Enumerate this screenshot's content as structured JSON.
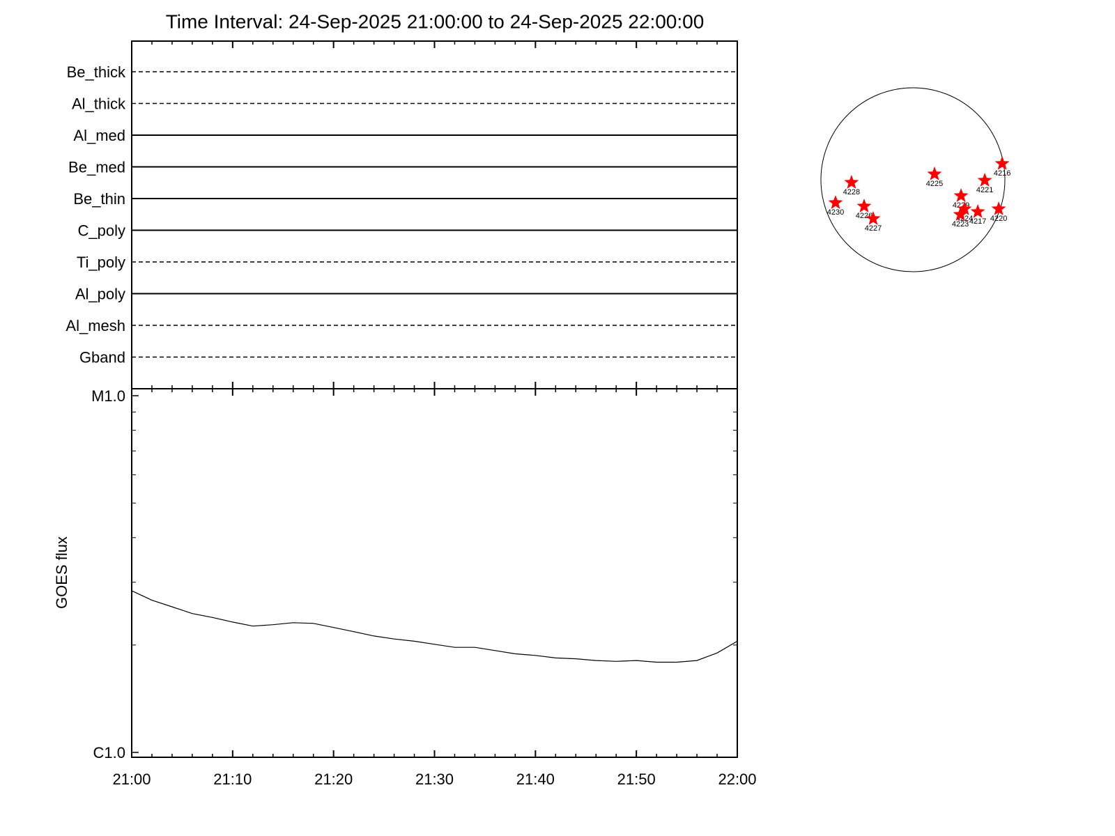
{
  "chart_data": [
    {
      "type": "timeline",
      "title": "Time Interval: 24-Sep-2025 21:00:00 to 24-Sep-2025 22:00:00",
      "categories": [
        "Be_thick",
        "Al_thick",
        "Al_med",
        "Be_med",
        "Be_thin",
        "C_poly",
        "Ti_poly",
        "Al_poly",
        "Al_mesh",
        "Gband"
      ],
      "line_style": [
        "dashed",
        "dashed",
        "solid",
        "solid",
        "solid",
        "solid",
        "dashed",
        "solid",
        "dashed",
        "dashed"
      ],
      "color": "#000000"
    },
    {
      "type": "line",
      "ylabel": "GOES flux",
      "x": [
        "21:00",
        "21:02",
        "21:04",
        "21:06",
        "21:08",
        "21:10",
        "21:12",
        "21:14",
        "21:16",
        "21:18",
        "21:20",
        "21:22",
        "21:24",
        "21:26",
        "21:28",
        "21:30",
        "21:32",
        "21:34",
        "21:36",
        "21:38",
        "21:40",
        "21:42",
        "21:44",
        "21:46",
        "21:48",
        "21:50",
        "21:52",
        "21:54",
        "21:56",
        "21:58",
        "22:00"
      ],
      "values": [
        2.84e-06,
        2.67e-06,
        2.56e-06,
        2.45e-06,
        2.39e-06,
        2.32e-06,
        2.26e-06,
        2.28e-06,
        2.31e-06,
        2.3e-06,
        2.24e-06,
        2.18e-06,
        2.12e-06,
        2.08e-06,
        2.05e-06,
        2.01e-06,
        1.97e-06,
        1.97e-06,
        1.93e-06,
        1.89e-06,
        1.87e-06,
        1.84e-06,
        1.83e-06,
        1.81e-06,
        1.8e-06,
        1.81e-06,
        1.79e-06,
        1.79e-06,
        1.81e-06,
        1.9e-06,
        2.05e-06
      ],
      "color": "#000000",
      "xlim": [
        "21:00",
        "22:00"
      ],
      "xticks": [
        "21:00",
        "21:10",
        "21:20",
        "21:30",
        "21:40",
        "21:50",
        "22:00"
      ],
      "ylim": [
        1e-06,
        1e-05
      ],
      "yticks": [
        {
          "value": 1e-05,
          "label": "M1.0"
        },
        {
          "value": 1e-06,
          "label": "C1.0"
        }
      ],
      "log_scale": true
    },
    {
      "type": "scatter",
      "labels": [
        "4216",
        "4228",
        "4225",
        "4221",
        "4229",
        "4230",
        "4226",
        "4227",
        "4224",
        "4223",
        "4217",
        "4220"
      ],
      "x": [
        922,
        -634,
        223,
        742,
        497,
        -799,
        -504,
        -410,
        533,
        490,
        670,
        886
      ],
      "values": [
        166,
        -29,
        58,
        -7,
        -166,
        -238,
        -274,
        -403,
        -302,
        -360,
        -331,
        -302
      ],
      "color": "#ff0000",
      "xlim": [
        -950,
        950
      ],
      "ylim": [
        -950,
        950
      ]
    }
  ]
}
